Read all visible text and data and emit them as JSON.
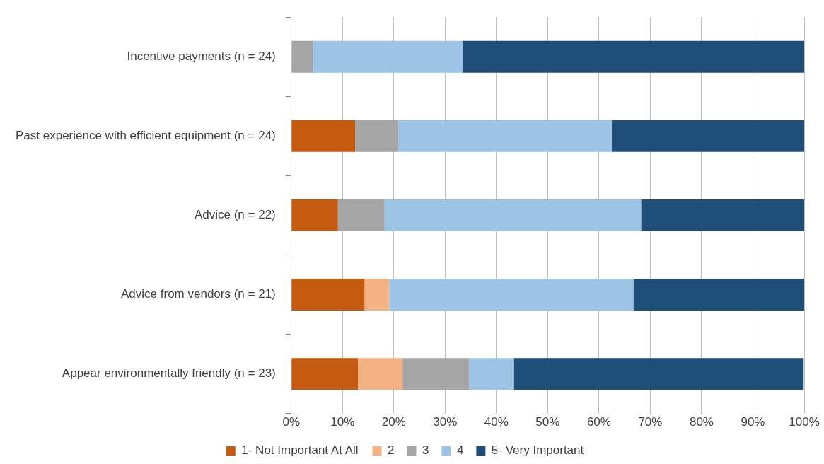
{
  "chart_data": {
    "type": "bar",
    "orientation": "horizontal",
    "stacked": true,
    "categories": [
      "Incentive payments (n = 24)",
      "Past experience with efficient equipment (n = 24)",
      "Advice (n = 22)",
      "Advice from vendors (n = 21)",
      "Appear environmentally friendly (n = 23)"
    ],
    "series": [
      {
        "name": "1- Not Important At All",
        "color": "#c55a11",
        "values": [
          0,
          12.5,
          9.1,
          14.3,
          13.0
        ]
      },
      {
        "name": "2",
        "color": "#f4b183",
        "values": [
          0,
          0,
          0,
          4.8,
          8.7
        ]
      },
      {
        "name": "3",
        "color": "#a5a5a5",
        "values": [
          4.2,
          8.3,
          9.1,
          0,
          13.0
        ]
      },
      {
        "name": "4",
        "color": "#9dc3e6",
        "values": [
          29.2,
          41.7,
          50.0,
          47.6,
          8.7
        ]
      },
      {
        "name": "5- Very Important",
        "color": "#1f4e79",
        "values": [
          66.7,
          37.5,
          31.8,
          33.3,
          56.5
        ]
      }
    ],
    "xlim": [
      0,
      100
    ],
    "xticks": [
      {
        "value": 0,
        "label": "0%"
      },
      {
        "value": 10,
        "label": "10%"
      },
      {
        "value": 20,
        "label": "20%"
      },
      {
        "value": 30,
        "label": "30%"
      },
      {
        "value": 40,
        "label": "40%"
      },
      {
        "value": 50,
        "label": "50%"
      },
      {
        "value": 60,
        "label": "60%"
      },
      {
        "value": 70,
        "label": "70%"
      },
      {
        "value": 80,
        "label": "80%"
      },
      {
        "value": 90,
        "label": "90%"
      },
      {
        "value": 100,
        "label": "100%"
      }
    ],
    "grid": "x",
    "legend": "bottom"
  }
}
